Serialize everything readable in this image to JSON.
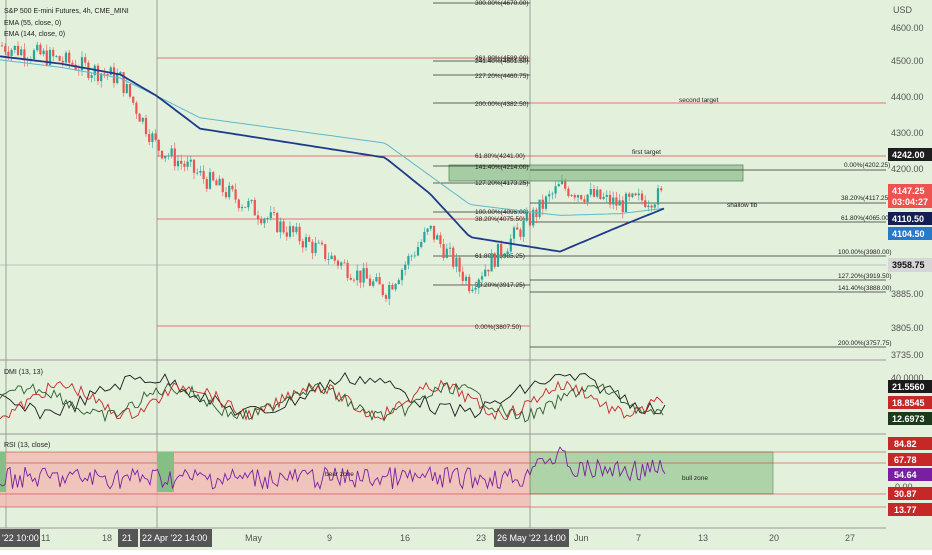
{
  "symbol": {
    "title": "S&P 500 E-mini Futures, 4h, CME_MINI",
    "ema1": "EMA (55, close, 0)",
    "ema2": "EMA (144, close, 0)",
    "dmi": "DMI (13, 13)",
    "rsi": "RSI (13, close)"
  },
  "axis": {
    "currency": "USD",
    "price_ticks": [
      "4600.00",
      "4500.00",
      "4400.00",
      "4300.00",
      "4200.00",
      "3885.00",
      "3805.00",
      "3735.00"
    ],
    "dmi_ticks": [
      "40.0000"
    ],
    "rsi_ticks": [
      "0.00"
    ],
    "time_labels": [
      "May",
      "9",
      "16",
      "23",
      "Jun",
      "7",
      "13",
      "20",
      "27",
      "11",
      "18"
    ],
    "time_badges": [
      "'22  10:00",
      "21",
      "22 Apr '22  14:00",
      "26 May '22  14:00"
    ]
  },
  "price_badges": [
    {
      "text": "4242.00",
      "color": "#1e1e1e"
    },
    {
      "text": "4147.25",
      "color": "#ef5350"
    },
    {
      "text": "03:04:27",
      "color": "#ef5350"
    },
    {
      "text": "4110.50",
      "color": "#131f52"
    },
    {
      "text": "4104.50",
      "color": "#2979c7"
    },
    {
      "text": "3958.75",
      "color": "#d6d6d6"
    },
    {
      "text": "21.5560",
      "color": "#1b1b1b"
    },
    {
      "text": "18.8545",
      "color": "#c62828"
    },
    {
      "text": "12.6973",
      "color": "#1b3a1b"
    },
    {
      "text": "84.82",
      "color": "#c62828"
    },
    {
      "text": "67.78",
      "color": "#c62828"
    },
    {
      "text": "54.64",
      "color": "#7b1fa2"
    },
    {
      "text": "30.87",
      "color": "#c62828"
    },
    {
      "text": "13.77",
      "color": "#c62828"
    }
  ],
  "fib_labels": {
    "f300": "300.00%(4670.00)",
    "f261": "261.80%(4589.00)",
    "f241": "241.40%(4501.50)",
    "f227": "227.20%(4460.75)",
    "f200": "200.00%(4382.50)",
    "f618a": "61.80%(4241.00)",
    "f141": "141.40%(4214.00)",
    "f127": "127.20%(4173.25)",
    "f100a": "100.00%(4095.00)",
    "f382a": "38.20%(4075.50)",
    "f618b": "61.80%(3985.25)",
    "f382b": "38.20%(3917.25)",
    "f0a": "0.00%(3807.50)",
    "f0b": "0.00%(4202.25)",
    "f382c": "38.20%(4117.25)",
    "f618c": "61.80%(4065.00)",
    "f100b": "100.00%(3980.00)",
    "f1272": "127.20%(3919.50)",
    "f1414": "141.40%(3888.00)",
    "f2000": "200.00%(3757.75)"
  },
  "annotations": {
    "second_target": "second target",
    "first_target": "first target",
    "shallow_fib": "shallow fib",
    "bear_zone": "bear zone",
    "bull_zone": "bull zone"
  },
  "colors": {
    "bg": "#e3f0dc",
    "up": "#26a69a",
    "down": "#ef5350",
    "ema55": "#1f3a8a",
    "ema144": "#5fb8c7",
    "fib_red": "#e34b4b"
  },
  "chart_data": {
    "type": "line",
    "title": "S&P 500 E-mini Futures, 4h, CME_MINI",
    "ylabel": "USD",
    "ylim": [
      3735,
      4700
    ],
    "series": [
      {
        "name": "EMA (55, close, 0)",
        "values": [
          4530,
          4510,
          4480,
          4420,
          4330,
          4250,
          4150,
          4030,
          3990,
          4060,
          4110
        ]
      },
      {
        "name": "EMA (144, close, 0)",
        "values": [
          4520,
          4500,
          4470,
          4420,
          4360,
          4290,
          4200,
          4120,
          4090,
          4095,
          4110
        ]
      }
    ],
    "approx_price": [
      4560,
      4520,
      4470,
      4280,
      4200,
      3880,
      4050,
      3900,
      4170,
      4120,
      4147.25
    ],
    "rsi_levels": [
      84.82,
      67.78,
      54.64,
      30.87,
      13.77
    ],
    "dmi_values": [
      21.556,
      18.8545,
      12.6973
    ]
  }
}
